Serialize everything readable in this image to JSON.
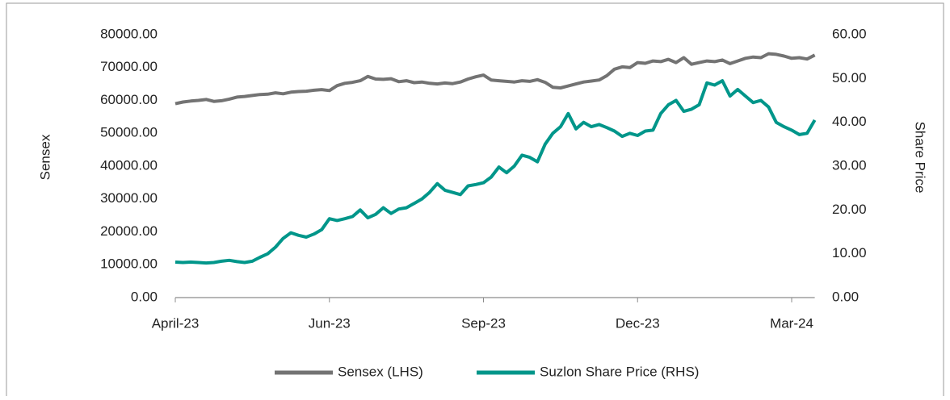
{
  "chart_data": {
    "type": "line",
    "y_label": "Sensex",
    "y2_label": "Share Price",
    "categories": [
      "April-23",
      null,
      null,
      null,
      null,
      null,
      null,
      null,
      null,
      null,
      null,
      null,
      null,
      null,
      null,
      null,
      null,
      null,
      null,
      null,
      "Jun-23",
      null,
      null,
      null,
      null,
      null,
      null,
      null,
      null,
      null,
      null,
      null,
      null,
      null,
      null,
      null,
      null,
      null,
      null,
      null,
      "Sep-23",
      null,
      null,
      null,
      null,
      null,
      null,
      null,
      null,
      null,
      null,
      null,
      null,
      null,
      null,
      null,
      null,
      null,
      null,
      null,
      "Dec-23",
      null,
      null,
      null,
      null,
      null,
      null,
      null,
      null,
      null,
      null,
      null,
      null,
      null,
      null,
      null,
      null,
      null,
      null,
      null,
      "Mar-24",
      null,
      null,
      null
    ],
    "ylim": [
      0,
      80000
    ],
    "yticks": [
      {
        "value": 0,
        "label": "0.00"
      },
      {
        "value": 10000,
        "label": "10000.00"
      },
      {
        "value": 20000,
        "label": "20000.00"
      },
      {
        "value": 30000,
        "label": "30000.00"
      },
      {
        "value": 40000,
        "label": "40000.00"
      },
      {
        "value": 50000,
        "label": "50000.00"
      },
      {
        "value": 60000,
        "label": "60000.00"
      },
      {
        "value": 70000,
        "label": "70000.00"
      },
      {
        "value": 80000,
        "label": "80000.00"
      }
    ],
    "y2lim": [
      0,
      60
    ],
    "y2ticks": [
      {
        "value": 0,
        "label": "0.00"
      },
      {
        "value": 10,
        "label": "10.00"
      },
      {
        "value": 20,
        "label": "20.00"
      },
      {
        "value": 30,
        "label": "30.00"
      },
      {
        "value": 40,
        "label": "40.00"
      },
      {
        "value": 50,
        "label": "50.00"
      },
      {
        "value": 60,
        "label": "60.00"
      }
    ],
    "legend": "bottom",
    "series": [
      {
        "name": "Sensex (LHS)",
        "color": "#737373",
        "values": [
          59000,
          59500,
          59800,
          60000,
          60300,
          59700,
          59900,
          60400,
          61000,
          61200,
          61500,
          61800,
          61900,
          62300,
          62000,
          62500,
          62700,
          62800,
          63100,
          63300,
          63000,
          64500,
          65200,
          65500,
          66000,
          67300,
          66500,
          66400,
          66600,
          65700,
          66000,
          65400,
          65600,
          65200,
          65000,
          65300,
          65100,
          65600,
          66500,
          67200,
          67700,
          66200,
          66000,
          65800,
          65600,
          66000,
          65800,
          66300,
          65500,
          64000,
          63800,
          64400,
          65000,
          65600,
          65900,
          66200,
          67500,
          69500,
          70200,
          70000,
          71500,
          71300,
          72000,
          71800,
          72500,
          71500,
          73000,
          71000,
          71500,
          72000,
          71800,
          72300,
          71200,
          72000,
          72800,
          73200,
          73000,
          74200,
          74000,
          73500,
          72800,
          73000,
          72600,
          73800
        ]
      },
      {
        "name": "Suzlon Share Price (RHS)",
        "color": "#00968a",
        "axis": "y2",
        "values": [
          8.1,
          8.0,
          8.1,
          8.0,
          7.9,
          8.0,
          8.3,
          8.5,
          8.2,
          8.0,
          8.3,
          9.2,
          10.0,
          11.5,
          13.5,
          14.8,
          14.2,
          13.8,
          14.5,
          15.5,
          18.0,
          17.6,
          18.0,
          18.5,
          20.0,
          18.2,
          19.0,
          20.5,
          19.2,
          20.2,
          20.5,
          21.5,
          22.5,
          24.0,
          26.0,
          24.5,
          24.0,
          23.5,
          25.5,
          25.8,
          26.2,
          27.5,
          29.8,
          28.5,
          30.0,
          32.5,
          32.0,
          31.0,
          35.0,
          37.5,
          39.0,
          42.0,
          38.5,
          40.0,
          39.0,
          39.5,
          38.8,
          38.0,
          36.8,
          37.5,
          37.0,
          38.0,
          38.2,
          42.0,
          44.0,
          45.0,
          42.5,
          43.0,
          44.0,
          49.0,
          48.5,
          49.5,
          46.0,
          47.5,
          46.0,
          44.5,
          45.0,
          43.5,
          40.0,
          39.0,
          38.2,
          37.2,
          37.5,
          40.5
        ]
      }
    ]
  }
}
